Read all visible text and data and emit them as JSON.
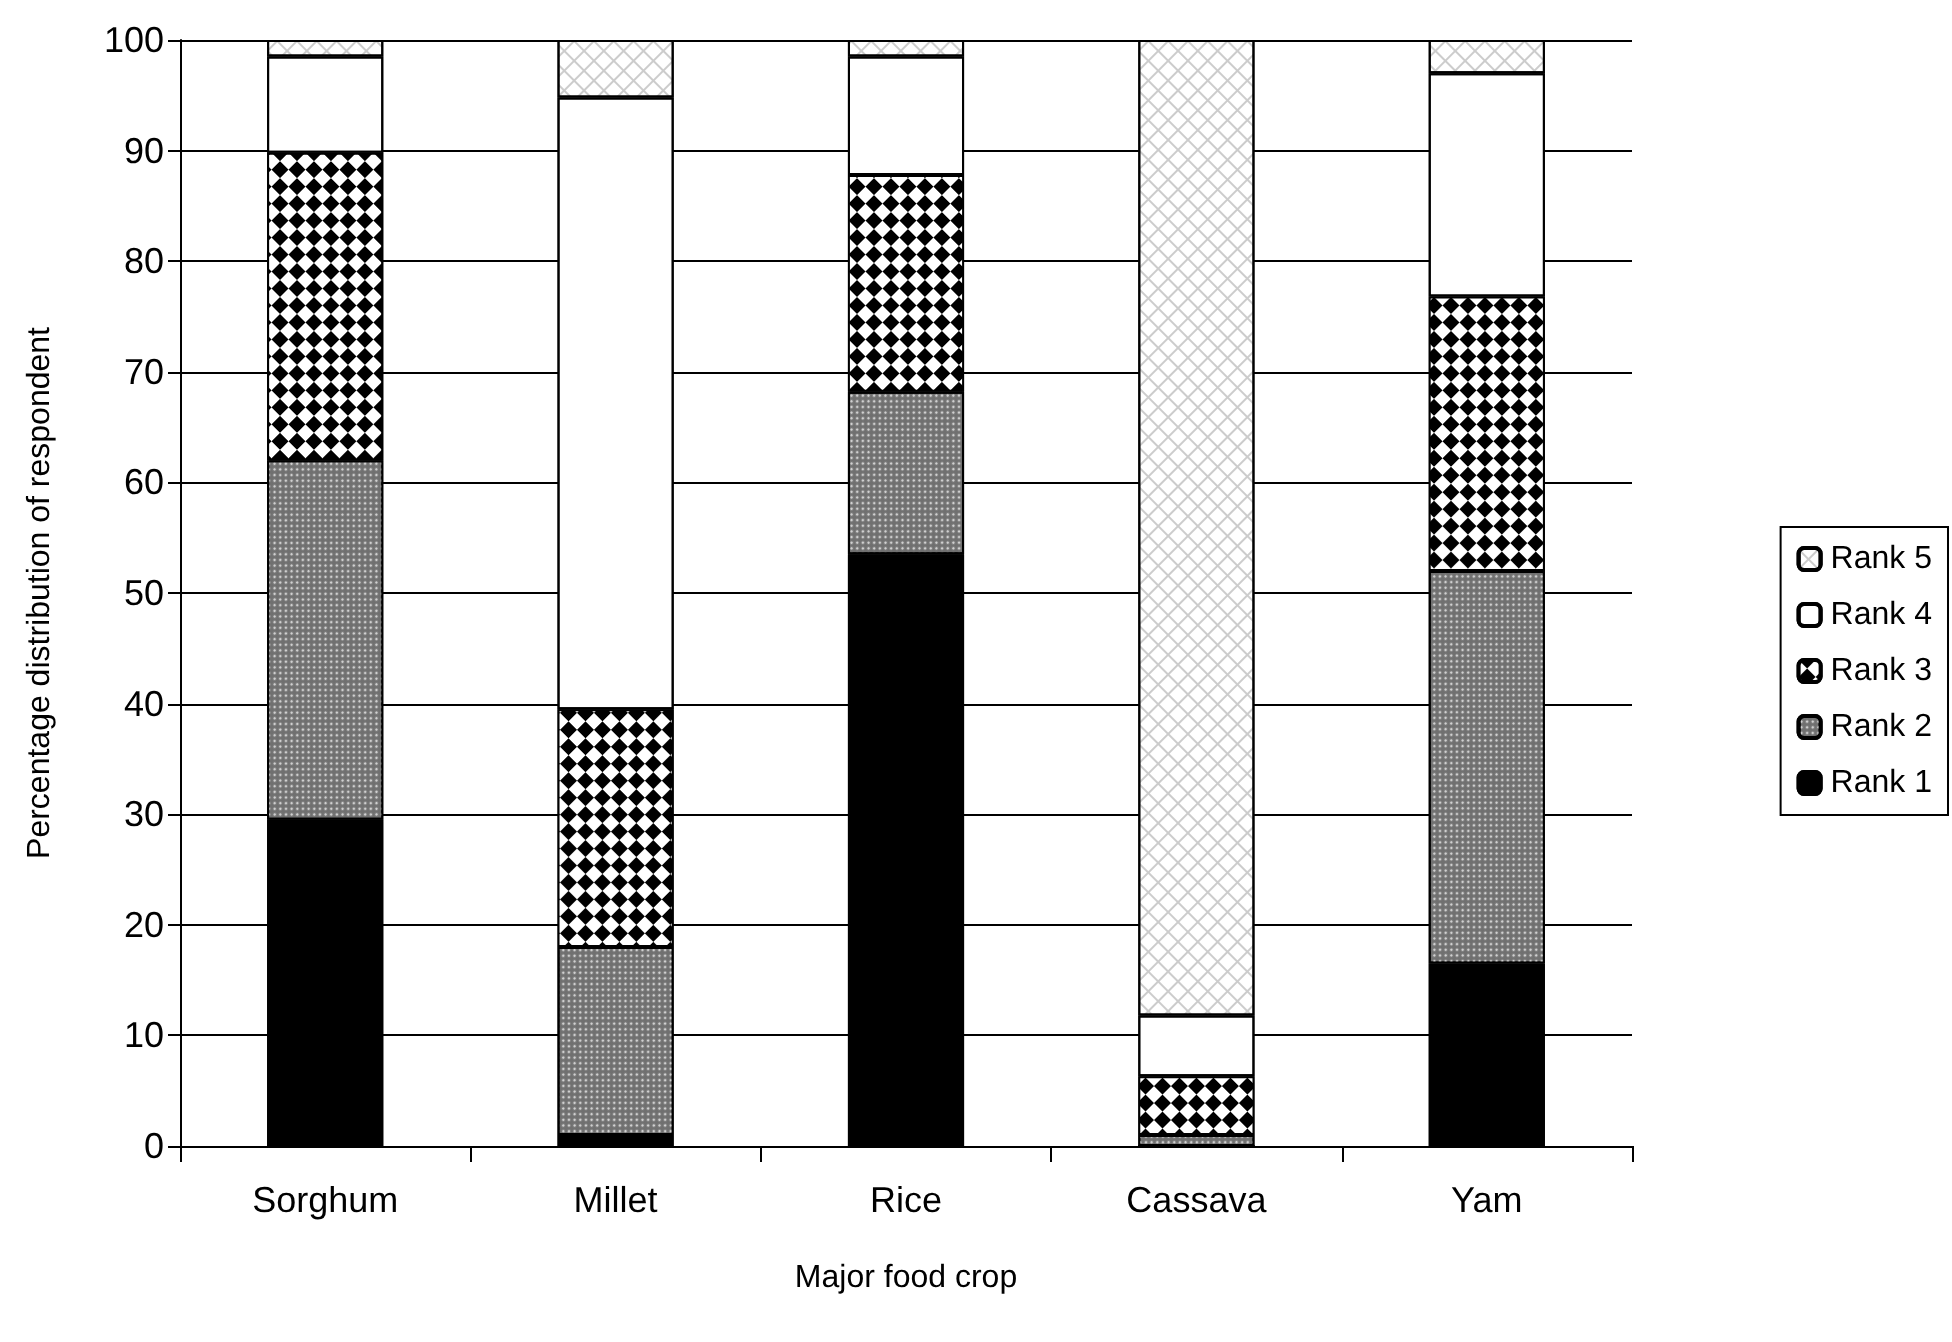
{
  "chart_data": {
    "type": "bar",
    "stacked": true,
    "xlabel": "Major food crop",
    "ylabel": "Percentage distribution of respondent",
    "categories": [
      "Sorghum",
      "Millet",
      "Rice",
      "Cassava",
      "Yam"
    ],
    "series": [
      {
        "name": "Rank 1",
        "color": "#000000",
        "values": [
          29.5,
          1,
          53.5,
          0,
          16.5
        ]
      },
      {
        "name": "Rank 2",
        "color": "#707070",
        "values": [
          32.5,
          17,
          14.7,
          1,
          35.5
        ]
      },
      {
        "name": "Rank 3",
        "color": "#000000",
        "values": [
          27.8,
          21.5,
          19.6,
          5.3,
          24.8
        ]
      },
      {
        "name": "Rank 4",
        "color": "#ffffff",
        "values": [
          8.7,
          55.3,
          10.7,
          5.5,
          20.2
        ]
      },
      {
        "name": "Rank 5",
        "color": "#ffffff",
        "values": [
          1.5,
          5.2,
          1.5,
          88.2,
          3
        ]
      }
    ],
    "ylim": [
      0,
      100
    ],
    "yticks": [
      0,
      10,
      20,
      30,
      40,
      50,
      60,
      70,
      80,
      90,
      100
    ],
    "grid": "y",
    "legend": "right"
  }
}
